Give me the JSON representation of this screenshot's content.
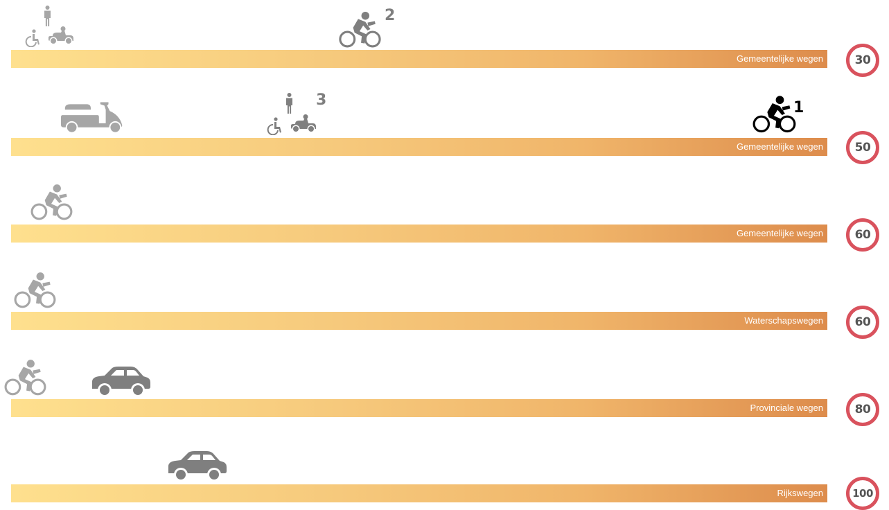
{
  "rows": [
    {
      "road_label": "Gemeentelijke wegen",
      "speed_limit": "30",
      "icons": [
        "walking-pedestrian-icon",
        "wheelchair-icon",
        "mobility-scooter-icon",
        "cyclist-icon"
      ],
      "markers": [
        "2"
      ]
    },
    {
      "road_label": "Gemeentelijke wegen",
      "speed_limit": "50",
      "icons": [
        "moped-scooter-icon",
        "walking-pedestrian-icon",
        "wheelchair-icon",
        "mobility-scooter-icon",
        "cyclist-icon"
      ],
      "markers": [
        "3",
        "1"
      ]
    },
    {
      "road_label": "Gemeentelijke wegen",
      "speed_limit": "60",
      "icons": [
        "cyclist-icon"
      ],
      "markers": []
    },
    {
      "road_label": "Waterschapswegen",
      "speed_limit": "60",
      "icons": [
        "cyclist-icon"
      ],
      "markers": []
    },
    {
      "road_label": "Provinciale wegen",
      "speed_limit": "80",
      "icons": [
        "cyclist-icon",
        "car-icon"
      ],
      "markers": []
    },
    {
      "road_label": "Rijkswegen",
      "speed_limit": "100",
      "icons": [
        "car-icon"
      ],
      "markers": []
    }
  ],
  "colors": {
    "icon_grey": "#a6a6a6",
    "icon_dark_grey": "#7f7f7f",
    "icon_black": "#000000",
    "sign_ring": "#d9525d",
    "bar_start": "#fee08e",
    "bar_end": "#dd8c4c"
  }
}
